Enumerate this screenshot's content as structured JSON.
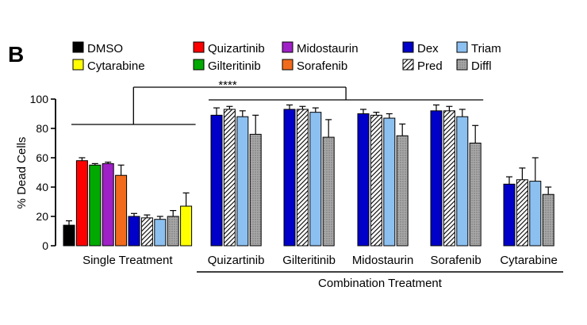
{
  "chart_data": {
    "type": "bar",
    "panel_label": "B",
    "ylabel": "% Dead Cells",
    "ylim": [
      0,
      100
    ],
    "yticks": [
      0,
      20,
      40,
      60,
      80,
      100
    ],
    "significance": "****",
    "group_axis_title": "Combination Treatment",
    "legend": [
      {
        "name": "DMSO",
        "color": "#000000",
        "pattern": "solid"
      },
      {
        "name": "Cytarabine",
        "color": "#ffff00",
        "pattern": "solid"
      },
      {
        "name": "Quizartinib",
        "color": "#ff0000",
        "pattern": "solid"
      },
      {
        "name": "Gilteritinib",
        "color": "#00aa00",
        "pattern": "solid"
      },
      {
        "name": "Midostaurin",
        "color": "#a020c8",
        "pattern": "solid"
      },
      {
        "name": "Sorafenib",
        "color": "#f26b1d",
        "pattern": "solid"
      },
      {
        "name": "Dex",
        "color": "#0000c8",
        "pattern": "solid"
      },
      {
        "name": "Pred",
        "color": "#ffffff",
        "pattern": "hatch"
      },
      {
        "name": "Triam",
        "color": "#8cc0f0",
        "pattern": "solid"
      },
      {
        "name": "Diffl",
        "color": "#a8a8a8",
        "pattern": "dots"
      }
    ],
    "groups": [
      {
        "label": "Single Treatment",
        "bars": [
          {
            "series": "DMSO",
            "value": 14,
            "error": 3
          },
          {
            "series": "Quizartinib",
            "value": 58,
            "error": 2
          },
          {
            "series": "Gilteritinib",
            "value": 55,
            "error": 1
          },
          {
            "series": "Midostaurin",
            "value": 56,
            "error": 1
          },
          {
            "series": "Sorafenib",
            "value": 48,
            "error": 7
          },
          {
            "series": "Dex",
            "value": 20,
            "error": 2
          },
          {
            "series": "Pred",
            "value": 19,
            "error": 2
          },
          {
            "series": "Triam",
            "value": 18,
            "error": 2
          },
          {
            "series": "Diffl",
            "value": 20,
            "error": 4
          },
          {
            "series": "Cytarabine",
            "value": 27,
            "error": 9
          }
        ]
      },
      {
        "label": "Quizartinib",
        "bars": [
          {
            "series": "Dex",
            "value": 89,
            "error": 5
          },
          {
            "series": "Pred",
            "value": 93,
            "error": 2
          },
          {
            "series": "Triam",
            "value": 88,
            "error": 4
          },
          {
            "series": "Diffl",
            "value": 76,
            "error": 13
          }
        ]
      },
      {
        "label": "Gilteritinib",
        "bars": [
          {
            "series": "Dex",
            "value": 93,
            "error": 3
          },
          {
            "series": "Pred",
            "value": 93,
            "error": 2
          },
          {
            "series": "Triam",
            "value": 91,
            "error": 3
          },
          {
            "series": "Diffl",
            "value": 74,
            "error": 12
          }
        ]
      },
      {
        "label": "Midostaurin",
        "bars": [
          {
            "series": "Dex",
            "value": 90,
            "error": 3
          },
          {
            "series": "Pred",
            "value": 89,
            "error": 2
          },
          {
            "series": "Triam",
            "value": 87,
            "error": 3
          },
          {
            "series": "Diffl",
            "value": 75,
            "error": 8
          }
        ]
      },
      {
        "label": "Sorafenib",
        "bars": [
          {
            "series": "Dex",
            "value": 92,
            "error": 4
          },
          {
            "series": "Pred",
            "value": 92,
            "error": 3
          },
          {
            "series": "Triam",
            "value": 88,
            "error": 5
          },
          {
            "series": "Diffl",
            "value": 70,
            "error": 12
          }
        ]
      },
      {
        "label": "Cytarabine",
        "bars": [
          {
            "series": "Dex",
            "value": 42,
            "error": 5
          },
          {
            "series": "Pred",
            "value": 45,
            "error": 8
          },
          {
            "series": "Triam",
            "value": 44,
            "error": 16
          },
          {
            "series": "Diffl",
            "value": 35,
            "error": 5
          }
        ]
      }
    ]
  }
}
